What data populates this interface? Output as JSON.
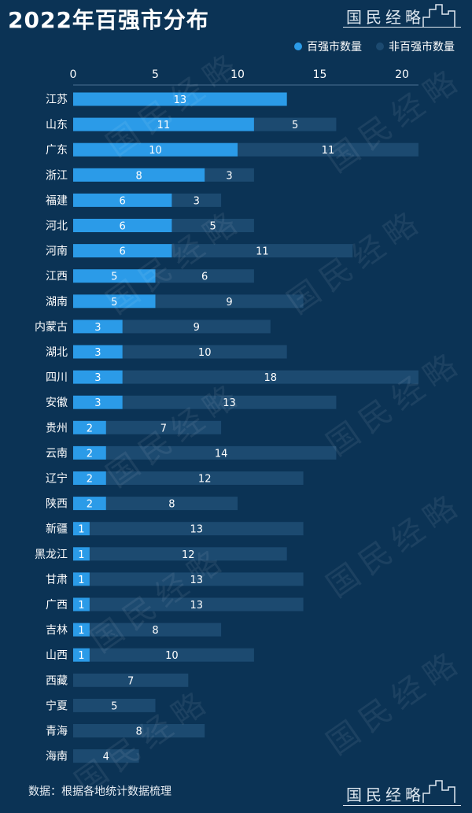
{
  "header": {
    "title": "2022年百强市分布",
    "brand": "国民经略"
  },
  "footer": {
    "source": "数据：根据各地统计数据梳理",
    "brand": "国民经略"
  },
  "colors": {
    "background": "#0b3355",
    "primary": "#2b9be8",
    "secondary": "#1c4a70"
  },
  "chart_data": {
    "type": "bar",
    "orientation": "horizontal",
    "stacked": true,
    "xlim": [
      0,
      21
    ],
    "ticks": [
      0,
      5,
      10,
      15,
      20
    ],
    "legend_position": "top-right",
    "categories": [
      "江苏",
      "山东",
      "广东",
      "浙江",
      "福建",
      "河北",
      "河南",
      "江西",
      "湖南",
      "内蒙古",
      "湖北",
      "四川",
      "安徽",
      "贵州",
      "云南",
      "辽宁",
      "陕西",
      "新疆",
      "黑龙江",
      "甘肃",
      "广西",
      "吉林",
      "山西",
      "西藏",
      "宁夏",
      "青海",
      "海南"
    ],
    "series": [
      {
        "name": "百强市数量",
        "color": "#2b9be8",
        "values": [
          13,
          11,
          10,
          8,
          6,
          6,
          6,
          5,
          5,
          3,
          3,
          3,
          3,
          2,
          2,
          2,
          2,
          1,
          1,
          1,
          1,
          1,
          1,
          0,
          0,
          0,
          0
        ]
      },
      {
        "name": "非百强市数量",
        "color": "#1c4a70",
        "values": [
          0,
          5,
          11,
          3,
          3,
          5,
          11,
          6,
          9,
          9,
          10,
          18,
          13,
          7,
          14,
          12,
          8,
          13,
          12,
          13,
          13,
          8,
          10,
          7,
          5,
          8,
          4
        ]
      }
    ]
  }
}
